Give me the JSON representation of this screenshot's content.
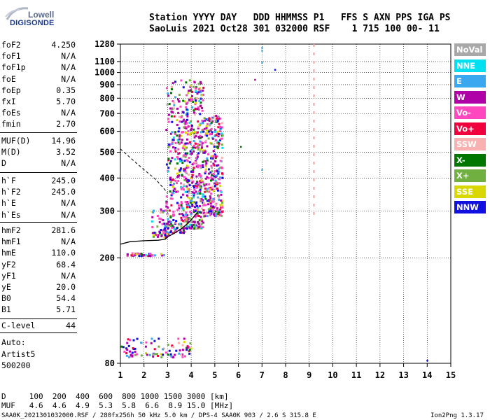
{
  "logo": {
    "top": "Lowell",
    "bottom": "DIGISONDE"
  },
  "header": {
    "line1": "Station YYYY DAY   DDD HHMMSS P1   FFS S AXN PPS IGA PS",
    "line2": "SaoLuis 2021 Oct28 301 032000 RSF    1 715 100 00- 11"
  },
  "params": {
    "group1": [
      {
        "name": "foF2",
        "value": "4.250"
      },
      {
        "name": "foF1",
        "value": "N/A"
      },
      {
        "name": "foF1p",
        "value": "N/A"
      },
      {
        "name": "foE",
        "value": "N/A"
      },
      {
        "name": "foEp",
        "value": "0.35"
      },
      {
        "name": "fxI",
        "value": "5.70"
      },
      {
        "name": "foEs",
        "value": "N/A"
      },
      {
        "name": "fmin",
        "value": "2.70"
      }
    ],
    "group2": [
      {
        "name": "MUF(D)",
        "value": "14.96"
      },
      {
        "name": "M(D)",
        "value": "3.52"
      },
      {
        "name": "D",
        "value": "N/A"
      }
    ],
    "group3": [
      {
        "name": "h`F",
        "value": "245.0"
      },
      {
        "name": "h`F2",
        "value": "245.0"
      },
      {
        "name": "h`E",
        "value": "N/A"
      },
      {
        "name": "h`Es",
        "value": "N/A"
      }
    ],
    "group4": [
      {
        "name": "hmF2",
        "value": "281.6"
      },
      {
        "name": "hmF1",
        "value": "N/A"
      },
      {
        "name": "hmE",
        "value": "110.0"
      },
      {
        "name": "yF2",
        "value": "68.4"
      },
      {
        "name": "yF1",
        "value": "N/A"
      },
      {
        "name": "yE",
        "value": "20.0"
      },
      {
        "name": "B0",
        "value": "54.4"
      },
      {
        "name": "B1",
        "value": "5.71"
      }
    ],
    "clevel": {
      "name": "C-level",
      "value": "44"
    },
    "autoscaler": [
      "Auto:",
      "Artist5",
      "500200"
    ]
  },
  "legend": [
    {
      "label": "NoVal",
      "color": "#a8a8a8"
    },
    {
      "label": "NNE",
      "color": "#00e0f0"
    },
    {
      "label": "E",
      "color": "#3aa8f0"
    },
    {
      "label": "W",
      "color": "#b000a8"
    },
    {
      "label": "Vo-",
      "color": "#ff48c0"
    },
    {
      "label": "Vo+",
      "color": "#f0003c"
    },
    {
      "label": "SSW",
      "color": "#f8b0b0"
    },
    {
      "label": "X-",
      "color": "#007800"
    },
    {
      "label": "X+",
      "color": "#70b040"
    },
    {
      "label": "SSE",
      "color": "#d8d800"
    },
    {
      "label": "NNW",
      "color": "#1010e0"
    }
  ],
  "footer": {
    "d_row": "D     100  200  400  600  800 1000 1500 3000 [km]",
    "muf_row": "MUF   4.6  4.6  4.9  5.3  5.8  6.6  8.9 15.0 [MHz]",
    "info": "SAA0K_2021301032000.RSF / 280fx256h 50 kHz 5.0 km / DPS-4 SAA0K 903 / 2.6 S 315.8 E",
    "version": "Ion2Png 1.3.17"
  },
  "chart_data": {
    "type": "scatter",
    "title": "",
    "xlabel": "",
    "ylabel": "",
    "xlim": [
      1,
      15
    ],
    "ylim": [
      80,
      1280
    ],
    "yscale": "log",
    "x_ticks": [
      "1",
      "2",
      "3",
      "4",
      "5",
      "6",
      "7",
      "8",
      "9",
      "10",
      "11",
      "12",
      "13",
      "14",
      "15"
    ],
    "y_ticks": [
      {
        "value": 80,
        "label": "80"
      },
      {
        "value": 200,
        "label": "200"
      },
      {
        "value": 300,
        "label": "300"
      },
      {
        "value": 400,
        "label": "400"
      },
      {
        "value": 500,
        "label": "500"
      },
      {
        "value": 600,
        "label": "600"
      },
      {
        "value": 700,
        "label": "700"
      },
      {
        "value": 800,
        "label": "800"
      },
      {
        "value": 900,
        "label": "900"
      },
      {
        "value": 1000,
        "label": "1000"
      },
      {
        "value": 1100,
        "label": "1100"
      },
      {
        "value": 1280,
        "label": "1280"
      }
    ],
    "grid": true,
    "trace_bottom_freq": [
      1.0,
      1.4,
      2.0,
      2.6,
      2.9,
      3.0,
      3.3,
      3.6,
      3.9,
      4.1,
      4.3
    ],
    "trace_bottom_height": [
      225,
      230,
      232,
      233,
      235,
      240,
      248,
      258,
      272,
      285,
      300
    ],
    "trace_upper_freq": [
      1.0,
      1.5,
      2.0,
      2.5,
      2.9,
      3.0
    ],
    "trace_upper_height": [
      515,
      470,
      430,
      395,
      360,
      350
    ],
    "echo_regions": [
      {
        "f1": 2.9,
        "f2": 3.7,
        "h1": 250,
        "h2": 950,
        "n": 260
      },
      {
        "f1": 3.7,
        "f2": 4.5,
        "h1": 260,
        "h2": 950,
        "n": 420
      },
      {
        "f1": 4.5,
        "f2": 5.3,
        "h1": 290,
        "h2": 700,
        "n": 300
      },
      {
        "f1": 2.3,
        "f2": 3.0,
        "h1": 240,
        "h2": 310,
        "n": 60
      },
      {
        "f1": 1.2,
        "f2": 2.9,
        "h1": 205,
        "h2": 210,
        "n": 40
      },
      {
        "f1": 1.0,
        "f2": 4.0,
        "h1": 85,
        "h2": 100,
        "n": 90
      }
    ],
    "scattered_points": [
      {
        "f": 7.0,
        "h": 1240,
        "color": "#3aa8f0"
      },
      {
        "f": 7.0,
        "h": 1210,
        "color": "#3aa8f0"
      },
      {
        "f": 7.0,
        "h": 1090,
        "color": "#3aa8f0"
      },
      {
        "f": 7.0,
        "h": 430,
        "color": "#3aa8f0"
      },
      {
        "f": 7.55,
        "h": 1025,
        "color": "#1010e0"
      },
      {
        "f": 6.7,
        "h": 940,
        "color": "#b000a8"
      },
      {
        "f": 14.0,
        "h": 82,
        "color": "#1010e0"
      },
      {
        "f": 6.1,
        "h": 525,
        "color": "#007800"
      }
    ],
    "dashed_line_freq": 9.2,
    "dashed_line_range": [
      280,
      1280
    ]
  }
}
